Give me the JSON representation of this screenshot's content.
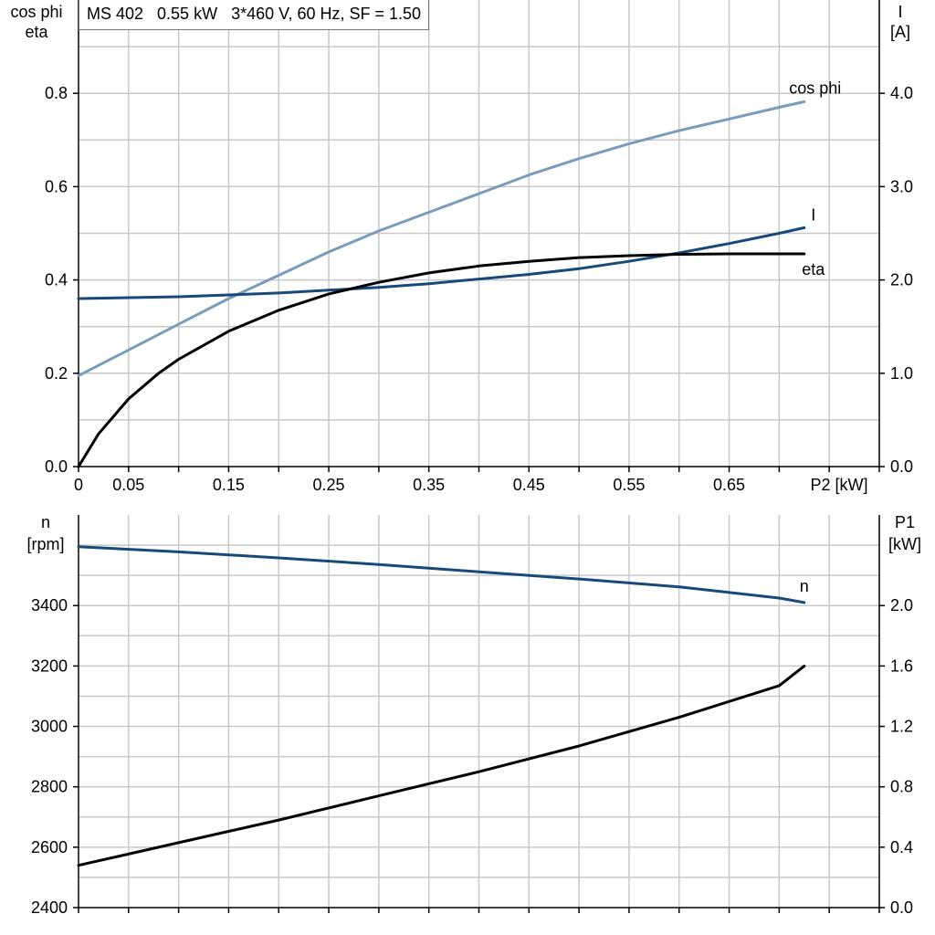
{
  "title": "MS 402   0.55 kW   3*460 V, 60 Hz, SF = 1.50",
  "colors": {
    "grid": "#c8c8c8",
    "axis": "#000000",
    "cosphi": "#7a9cbb",
    "current": "#17497a",
    "eta": "#000000",
    "speed": "#17497a",
    "p1": "#000000"
  },
  "chart_data": [
    {
      "type": "line",
      "xlabel": "P2 [kW]",
      "xlim": [
        0,
        0.8
      ],
      "x_tick_labels": [
        "0",
        "0.05",
        "0.15",
        "0.25",
        "0.35",
        "0.45",
        "0.55",
        "0.65"
      ],
      "x_tick_values": [
        0,
        0.05,
        0.15,
        0.25,
        0.35,
        0.45,
        0.55,
        0.65
      ],
      "left_axis": {
        "label": [
          "cos phi",
          "eta"
        ],
        "ylim": [
          0,
          1.0
        ],
        "tick_values": [
          0.0,
          0.2,
          0.4,
          0.6,
          0.8
        ],
        "tick_labels": [
          "0.0",
          "0.2",
          "0.4",
          "0.6",
          "0.8"
        ]
      },
      "right_axis": {
        "label": [
          "I",
          "[A]"
        ],
        "ylim": [
          0,
          5.0
        ],
        "tick_values": [
          0.0,
          1.0,
          2.0,
          3.0,
          4.0
        ],
        "tick_labels": [
          "0.0",
          "1.0",
          "2.0",
          "3.0",
          "4.0"
        ]
      },
      "grid": true,
      "series": [
        {
          "name": "cos phi",
          "axis": "left",
          "color": "#7a9cbb",
          "x": [
            0,
            0.05,
            0.1,
            0.15,
            0.2,
            0.25,
            0.3,
            0.35,
            0.4,
            0.45,
            0.5,
            0.55,
            0.6,
            0.65,
            0.7,
            0.725
          ],
          "y": [
            0.195,
            0.25,
            0.305,
            0.36,
            0.41,
            0.46,
            0.505,
            0.545,
            0.585,
            0.625,
            0.66,
            0.692,
            0.72,
            0.745,
            0.77,
            0.782
          ]
        },
        {
          "name": "I",
          "axis": "right",
          "color": "#17497a",
          "x": [
            0,
            0.05,
            0.1,
            0.15,
            0.2,
            0.25,
            0.3,
            0.35,
            0.4,
            0.45,
            0.5,
            0.55,
            0.6,
            0.65,
            0.7,
            0.725
          ],
          "y": [
            1.8,
            1.81,
            1.82,
            1.84,
            1.86,
            1.89,
            1.92,
            1.96,
            2.01,
            2.06,
            2.12,
            2.2,
            2.29,
            2.39,
            2.5,
            2.56
          ]
        },
        {
          "name": "eta",
          "axis": "left",
          "color": "#000000",
          "x": [
            0,
            0.02,
            0.05,
            0.08,
            0.1,
            0.15,
            0.2,
            0.25,
            0.3,
            0.35,
            0.4,
            0.45,
            0.5,
            0.55,
            0.6,
            0.65,
            0.7,
            0.725
          ],
          "y": [
            0.0,
            0.07,
            0.145,
            0.2,
            0.23,
            0.29,
            0.335,
            0.37,
            0.395,
            0.415,
            0.43,
            0.44,
            0.448,
            0.452,
            0.455,
            0.456,
            0.456,
            0.456
          ]
        }
      ]
    },
    {
      "type": "line",
      "xlim": [
        0,
        0.8
      ],
      "left_axis": {
        "label": [
          "n",
          "[rpm]"
        ],
        "ylim": [
          2400,
          3700
        ],
        "tick_values": [
          2400,
          2600,
          2800,
          3000,
          3200,
          3400
        ],
        "tick_labels": [
          "2400",
          "2600",
          "2800",
          "3000",
          "3200",
          "3400"
        ]
      },
      "right_axis": {
        "label": [
          "P1",
          "[kW]"
        ],
        "ylim": [
          0.0,
          2.6
        ],
        "tick_values": [
          0.0,
          0.4,
          0.8,
          1.2,
          1.6,
          2.0
        ],
        "tick_labels": [
          "0.0",
          "0.4",
          "0.8",
          "1.2",
          "1.6",
          "2.0"
        ]
      },
      "grid": true,
      "series": [
        {
          "name": "n",
          "axis": "left",
          "color": "#17497a",
          "x": [
            0,
            0.1,
            0.2,
            0.3,
            0.4,
            0.5,
            0.6,
            0.7,
            0.725
          ],
          "y": [
            3595,
            3578,
            3558,
            3536,
            3512,
            3488,
            3462,
            3425,
            3410
          ]
        },
        {
          "axis": "right",
          "color": "#000000",
          "x": [
            0,
            0.1,
            0.2,
            0.3,
            0.4,
            0.5,
            0.6,
            0.7,
            0.725
          ],
          "y": [
            0.28,
            0.43,
            0.58,
            0.74,
            0.9,
            1.07,
            1.26,
            1.47,
            1.6
          ]
        }
      ]
    }
  ]
}
